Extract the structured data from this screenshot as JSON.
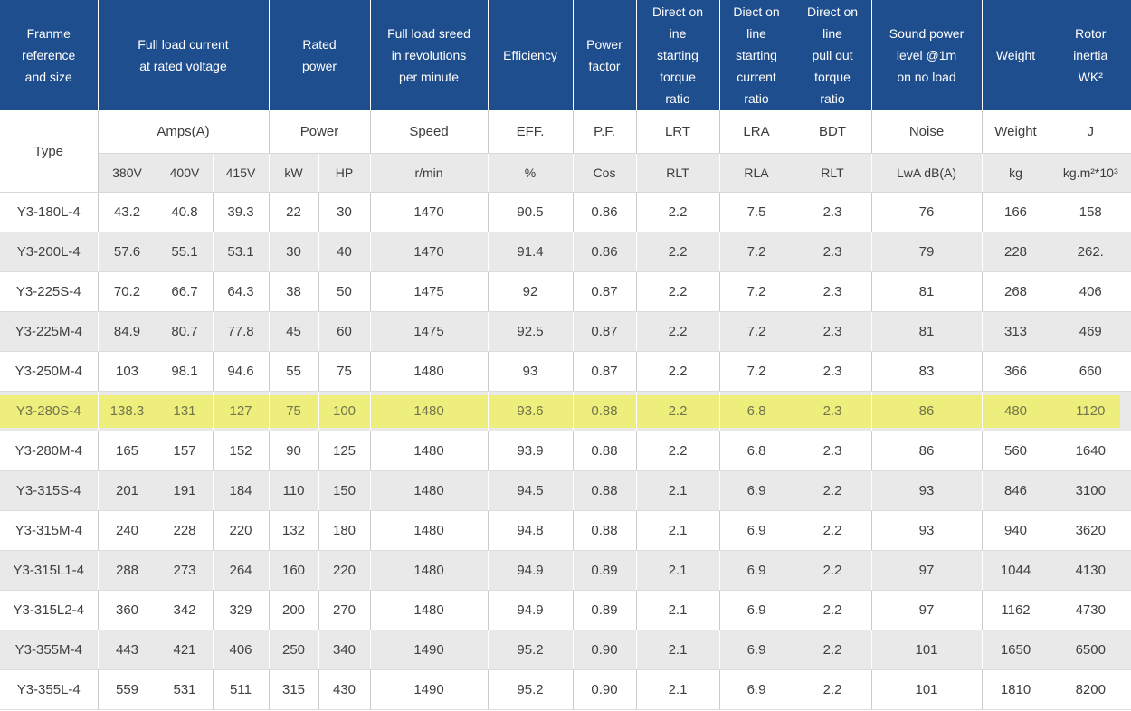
{
  "table": {
    "colors": {
      "header_bg": "#1f4e8e",
      "header_text": "#ffffff",
      "stripe_bg": "#e9e9e9",
      "highlight_bg": "#edee7b",
      "body_text": "#404040"
    },
    "header_groups": [
      {
        "label": "Franme\nreference\nand size"
      },
      {
        "label": "Full load current\nat rated voltage"
      },
      {
        "label": "Rated\npower"
      },
      {
        "label": "Full load sreed\nin revolutions\nper minute"
      },
      {
        "label": "Efficiency"
      },
      {
        "label": "Power\nfactor"
      },
      {
        "label": "Direct on\nine\nstarting\ntorque\nratio"
      },
      {
        "label": "Diect on\nline\nstarting\ncurrent\nratio"
      },
      {
        "label": "Direct on\nline\npull out\ntorque\nratio"
      },
      {
        "label": "Sound power\nlevel @1m\non no load"
      },
      {
        "label": "Weight"
      },
      {
        "label": "Rotor\ninertia\nWK²"
      }
    ],
    "subheader": [
      "Type",
      "Amps(A)",
      "Power",
      "Speed",
      "EFF.",
      "P.F.",
      "LRT",
      "LRA",
      "BDT",
      "Noise",
      "Weight",
      "J"
    ],
    "units": [
      "380V",
      "400V",
      "415V",
      "kW",
      "HP",
      "r/min",
      "%",
      "Cos",
      "RLT",
      "RLA",
      "RLT",
      "LwA dB(A)",
      "kg",
      "kg.m²*10³"
    ],
    "highlight_row_index": 5,
    "highlighted_type": "Y3-280S-4",
    "rows": [
      [
        "Y3-180L-4",
        "43.2",
        "40.8",
        "39.3",
        "22",
        "30",
        "1470",
        "90.5",
        "0.86",
        "2.2",
        "7.5",
        "2.3",
        "76",
        "166",
        "158"
      ],
      [
        "Y3-200L-4",
        "57.6",
        "55.1",
        "53.1",
        "30",
        "40",
        "1470",
        "91.4",
        "0.86",
        "2.2",
        "7.2",
        "2.3",
        "79",
        "228",
        "262."
      ],
      [
        "Y3-225S-4",
        "70.2",
        "66.7",
        "64.3",
        "38",
        "50",
        "1475",
        "92",
        "0.87",
        "2.2",
        "7.2",
        "2.3",
        "81",
        "268",
        "406"
      ],
      [
        "Y3-225M-4",
        "84.9",
        "80.7",
        "77.8",
        "45",
        "60",
        "1475",
        "92.5",
        "0.87",
        "2.2",
        "7.2",
        "2.3",
        "81",
        "313",
        "469"
      ],
      [
        "Y3-250M-4",
        "103",
        "98.1",
        "94.6",
        "55",
        "75",
        "1480",
        "93",
        "0.87",
        "2.2",
        "7.2",
        "2.3",
        "83",
        "366",
        "660"
      ],
      [
        "Y3-280S-4",
        "138.3",
        "131",
        "127",
        "75",
        "100",
        "1480",
        "93.6",
        "0.88",
        "2.2",
        "6.8",
        "2.3",
        "86",
        "480",
        "1120"
      ],
      [
        "Y3-280M-4",
        "165",
        "157",
        "152",
        "90",
        "125",
        "1480",
        "93.9",
        "0.88",
        "2.2",
        "6.8",
        "2.3",
        "86",
        "560",
        "1640"
      ],
      [
        "Y3-315S-4",
        "201",
        "191",
        "184",
        "110",
        "150",
        "1480",
        "94.5",
        "0.88",
        "2.1",
        "6.9",
        "2.2",
        "93",
        "846",
        "3100"
      ],
      [
        "Y3-315M-4",
        "240",
        "228",
        "220",
        "132",
        "180",
        "1480",
        "94.8",
        "0.88",
        "2.1",
        "6.9",
        "2.2",
        "93",
        "940",
        "3620"
      ],
      [
        "Y3-315L1-4",
        "288",
        "273",
        "264",
        "160",
        "220",
        "1480",
        "94.9",
        "0.89",
        "2.1",
        "6.9",
        "2.2",
        "97",
        "1044",
        "4130"
      ],
      [
        "Y3-315L2-4",
        "360",
        "342",
        "329",
        "200",
        "270",
        "1480",
        "94.9",
        "0.89",
        "2.1",
        "6.9",
        "2.2",
        "97",
        "1162",
        "4730"
      ],
      [
        "Y3-355M-4",
        "443",
        "421",
        "406",
        "250",
        "340",
        "1490",
        "95.2",
        "0.90",
        "2.1",
        "6.9",
        "2.2",
        "101",
        "1650",
        "6500"
      ],
      [
        "Y3-355L-4",
        "559",
        "531",
        "511",
        "315",
        "430",
        "1490",
        "95.2",
        "0.90",
        "2.1",
        "6.9",
        "2.2",
        "101",
        "1810",
        "8200"
      ]
    ]
  }
}
